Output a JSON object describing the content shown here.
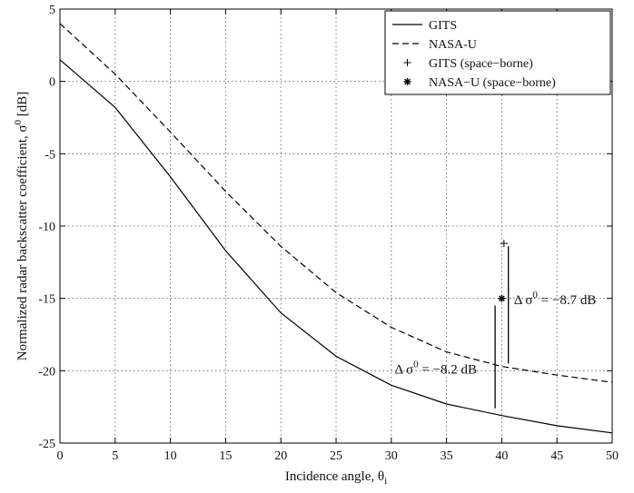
{
  "chart_data": {
    "type": "line",
    "xlabel": "Incidence angle, θ",
    "xlabel_sub": "i",
    "ylabel": "Normalized radar backscatter coefficient, σ",
    "ylabel_sup": "0",
    "ylabel_unit": " [dB]",
    "xlim": [
      0,
      50
    ],
    "ylim": [
      -25,
      5
    ],
    "xticks": [
      0,
      5,
      10,
      15,
      20,
      25,
      30,
      35,
      40,
      45,
      50
    ],
    "yticks": [
      5,
      0,
      -5,
      -10,
      -15,
      -20,
      -25
    ],
    "grid": true,
    "legend_position": "top-right",
    "series": [
      {
        "name": "GITS",
        "style": "solid",
        "x": [
          0,
          5,
          10,
          15,
          20,
          25,
          30,
          35,
          40,
          45,
          50
        ],
        "y": [
          1.5,
          -1.8,
          -6.6,
          -11.7,
          -16.0,
          -19.0,
          -21.0,
          -22.3,
          -23.1,
          -23.8,
          -24.3
        ]
      },
      {
        "name": "NASA-U",
        "style": "dashed",
        "x": [
          0,
          5,
          10,
          15,
          20,
          25,
          30,
          35,
          40,
          45,
          50
        ],
        "y": [
          4.0,
          0.5,
          -3.5,
          -7.6,
          -11.4,
          -14.6,
          -17.0,
          -18.7,
          -19.7,
          -20.3,
          -20.8
        ]
      },
      {
        "name": "GITS (space−borne)",
        "style": "marker-plus",
        "x": [
          40.2
        ],
        "y": [
          -11.2
        ]
      },
      {
        "name": "NASA−U (space−borne)",
        "style": "marker-star",
        "x": [
          40.0
        ],
        "y": [
          -15.0
        ]
      }
    ],
    "annotations": [
      {
        "prefix": "Δ σ",
        "sup": "0",
        "suffix": " = −8.2  dB",
        "x": 30.3,
        "y": -20.2
      },
      {
        "prefix": "Δ σ",
        "sup": "0",
        "suffix": " = −8.7 dB",
        "x": 41.1,
        "y": -15.4
      }
    ],
    "delta_bars": [
      {
        "x": 39.4,
        "y1": -15.5,
        "y2": -22.6
      },
      {
        "x": 40.6,
        "y1": -11.4,
        "y2": -19.5
      }
    ]
  }
}
